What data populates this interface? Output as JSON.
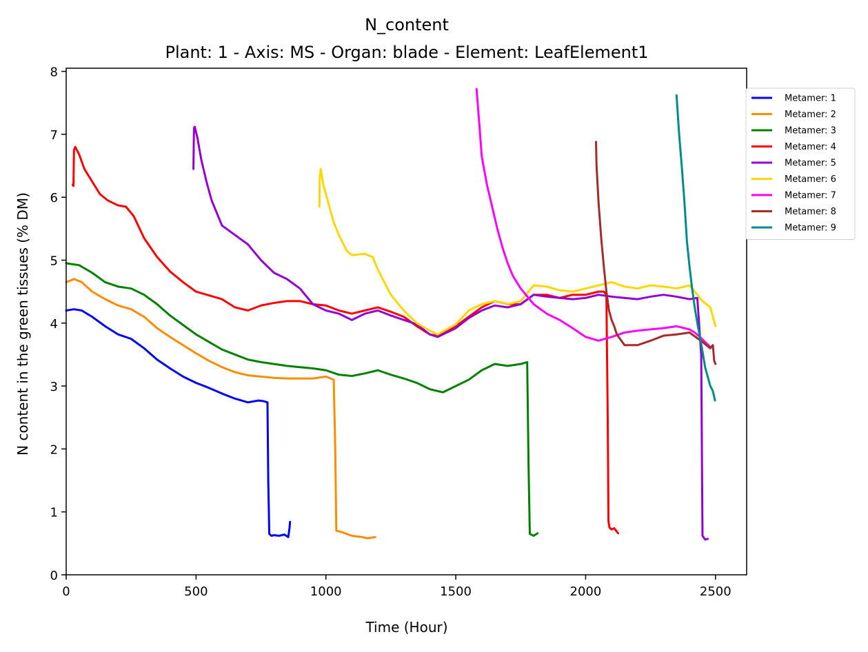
{
  "chart_data": {
    "type": "line",
    "title": "N_content",
    "subtitle": "Plant: 1 - Axis: MS - Organ: blade - Element: LeafElement1",
    "xlabel": "Time (Hour)",
    "ylabel": "N content in the green tissues (% DM)",
    "xlim": [
      0,
      2620
    ],
    "ylim": [
      0,
      8.05
    ],
    "xticks": [
      0,
      500,
      1000,
      1500,
      2000,
      2500
    ],
    "yticks": [
      0,
      1,
      2,
      3,
      4,
      5,
      6,
      7,
      8
    ],
    "xtick_labels": [
      "0",
      "500",
      "1000",
      "1500",
      "2000",
      "2500"
    ],
    "ytick_labels": [
      "0",
      "1",
      "2",
      "3",
      "4",
      "5",
      "6",
      "7",
      "8"
    ],
    "grid": false,
    "legend_position": "outside right, top",
    "series": [
      {
        "name": "Metamer: 1",
        "color": "#0000ff",
        "x": [
          0,
          30,
          60,
          100,
          150,
          200,
          250,
          300,
          350,
          400,
          450,
          500,
          550,
          600,
          650,
          700,
          740,
          760,
          775,
          778,
          782,
          790,
          800,
          820,
          840,
          855,
          860,
          862
        ],
        "y": [
          4.2,
          4.22,
          4.2,
          4.1,
          3.95,
          3.82,
          3.75,
          3.6,
          3.42,
          3.28,
          3.15,
          3.05,
          2.97,
          2.88,
          2.8,
          2.74,
          2.77,
          2.76,
          2.74,
          1.5,
          0.65,
          0.62,
          0.63,
          0.62,
          0.64,
          0.6,
          0.75,
          0.84
        ]
      },
      {
        "name": "Metamer: 2",
        "color": "#ff8c00",
        "x": [
          0,
          30,
          60,
          100,
          150,
          200,
          250,
          300,
          350,
          400,
          450,
          500,
          550,
          600,
          650,
          700,
          750,
          800,
          850,
          900,
          950,
          1000,
          1030,
          1036,
          1040,
          1060,
          1080,
          1100,
          1140,
          1160,
          1190
        ],
        "y": [
          4.65,
          4.7,
          4.65,
          4.5,
          4.38,
          4.28,
          4.22,
          4.1,
          3.92,
          3.78,
          3.65,
          3.52,
          3.4,
          3.3,
          3.22,
          3.17,
          3.15,
          3.13,
          3.12,
          3.12,
          3.12,
          3.15,
          3.1,
          2.0,
          0.7,
          0.68,
          0.65,
          0.62,
          0.6,
          0.58,
          0.6
        ]
      },
      {
        "name": "Metamer: 3",
        "color": "#008000",
        "x": [
          0,
          50,
          100,
          150,
          200,
          250,
          300,
          350,
          400,
          450,
          500,
          550,
          600,
          650,
          700,
          750,
          800,
          850,
          900,
          950,
          1000,
          1050,
          1100,
          1150,
          1200,
          1250,
          1300,
          1350,
          1400,
          1450,
          1500,
          1550,
          1600,
          1650,
          1700,
          1750,
          1775,
          1780,
          1785,
          1800,
          1815
        ],
        "y": [
          4.95,
          4.92,
          4.8,
          4.65,
          4.58,
          4.55,
          4.45,
          4.3,
          4.12,
          3.97,
          3.82,
          3.7,
          3.58,
          3.5,
          3.42,
          3.38,
          3.35,
          3.32,
          3.3,
          3.28,
          3.25,
          3.18,
          3.16,
          3.2,
          3.25,
          3.18,
          3.12,
          3.05,
          2.95,
          2.9,
          3.0,
          3.1,
          3.25,
          3.35,
          3.32,
          3.35,
          3.38,
          1.8,
          0.65,
          0.62,
          0.66
        ]
      },
      {
        "name": "Metamer: 4",
        "color": "#ff0000",
        "x": [
          25,
          28,
          30,
          35,
          50,
          70,
          100,
          130,
          160,
          200,
          230,
          260,
          300,
          350,
          400,
          450,
          500,
          550,
          600,
          650,
          700,
          750,
          800,
          850,
          900,
          950,
          1000,
          1050,
          1100,
          1150,
          1200,
          1250,
          1300,
          1350,
          1400,
          1430,
          1500,
          1550,
          1600,
          1650,
          1700,
          1750,
          1800,
          1850,
          1900,
          1950,
          2000,
          2050,
          2070,
          2080,
          2085,
          2088,
          2092,
          2100,
          2110,
          2125
        ],
        "y": [
          6.2,
          6.18,
          6.75,
          6.8,
          6.68,
          6.45,
          6.25,
          6.05,
          5.95,
          5.87,
          5.85,
          5.7,
          5.35,
          5.05,
          4.82,
          4.65,
          4.5,
          4.44,
          4.38,
          4.25,
          4.2,
          4.28,
          4.32,
          4.35,
          4.35,
          4.3,
          4.28,
          4.2,
          4.15,
          4.2,
          4.25,
          4.18,
          4.1,
          3.95,
          3.82,
          3.8,
          3.95,
          4.1,
          4.25,
          4.35,
          4.3,
          4.3,
          4.45,
          4.45,
          4.4,
          4.45,
          4.45,
          4.5,
          4.5,
          4.45,
          2.5,
          0.85,
          0.75,
          0.72,
          0.74,
          0.66
        ]
      },
      {
        "name": "Metamer: 5",
        "color": "#9400d3",
        "x": [
          490,
          492,
          495,
          505,
          520,
          540,
          560,
          580,
          600,
          650,
          700,
          750,
          800,
          850,
          900,
          950,
          1000,
          1050,
          1100,
          1150,
          1200,
          1250,
          1300,
          1350,
          1400,
          1430,
          1500,
          1550,
          1600,
          1650,
          1700,
          1750,
          1800,
          1850,
          1900,
          1950,
          2000,
          2050,
          2100,
          2150,
          2200,
          2250,
          2300,
          2350,
          2400,
          2430,
          2445,
          2450,
          2460,
          2470
        ],
        "y": [
          6.45,
          7.1,
          7.12,
          6.95,
          6.6,
          6.25,
          5.95,
          5.75,
          5.55,
          5.4,
          5.25,
          5.0,
          4.8,
          4.7,
          4.55,
          4.3,
          4.2,
          4.15,
          4.05,
          4.15,
          4.2,
          4.12,
          4.05,
          3.98,
          3.82,
          3.78,
          3.92,
          4.08,
          4.2,
          4.28,
          4.25,
          4.3,
          4.45,
          4.42,
          4.4,
          4.38,
          4.4,
          4.45,
          4.42,
          4.4,
          4.38,
          4.42,
          4.45,
          4.42,
          4.38,
          4.4,
          3.5,
          0.62,
          0.56,
          0.57
        ]
      },
      {
        "name": "Metamer: 6",
        "color": "#ffd700",
        "x": [
          975,
          976,
          980,
          990,
          1010,
          1030,
          1050,
          1080,
          1100,
          1150,
          1180,
          1200,
          1250,
          1300,
          1350,
          1400,
          1430,
          1500,
          1550,
          1600,
          1650,
          1700,
          1750,
          1800,
          1850,
          1900,
          1950,
          2000,
          2050,
          2100,
          2150,
          2200,
          2250,
          2300,
          2350,
          2400,
          2430,
          2450,
          2480,
          2500
        ],
        "y": [
          5.85,
          6.3,
          6.45,
          6.2,
          5.9,
          5.6,
          5.4,
          5.15,
          5.08,
          5.1,
          5.05,
          4.85,
          4.45,
          4.2,
          4.0,
          3.88,
          3.82,
          3.98,
          4.2,
          4.3,
          4.35,
          4.3,
          4.35,
          4.6,
          4.58,
          4.52,
          4.5,
          4.55,
          4.6,
          4.65,
          4.58,
          4.55,
          4.6,
          4.58,
          4.55,
          4.6,
          4.45,
          4.35,
          4.25,
          3.95
        ]
      },
      {
        "name": "Metamer: 7",
        "color": "#ff00ff",
        "x": [
          1580,
          1590,
          1600,
          1620,
          1640,
          1660,
          1680,
          1700,
          1720,
          1750,
          1800,
          1850,
          1900,
          1950,
          2000,
          2050,
          2100,
          2150,
          2200,
          2250,
          2300,
          2350,
          2400,
          2420,
          2440,
          2460,
          2480
        ],
        "y": [
          7.72,
          7.2,
          6.65,
          6.2,
          5.85,
          5.5,
          5.2,
          4.95,
          4.75,
          4.55,
          4.3,
          4.15,
          4.05,
          3.92,
          3.78,
          3.72,
          3.78,
          3.85,
          3.88,
          3.9,
          3.92,
          3.95,
          3.9,
          3.85,
          3.78,
          3.7,
          3.62
        ]
      },
      {
        "name": "Metamer: 8",
        "color": "#a52a2a",
        "x": [
          2040,
          2042,
          2050,
          2060,
          2070,
          2080,
          2090,
          2100,
          2110,
          2120,
          2150,
          2200,
          2250,
          2300,
          2350,
          2400,
          2450,
          2480,
          2490,
          2495,
          2500
        ],
        "y": [
          6.88,
          6.5,
          5.9,
          5.35,
          4.9,
          4.5,
          4.2,
          4.05,
          3.95,
          3.82,
          3.65,
          3.65,
          3.72,
          3.8,
          3.82,
          3.85,
          3.7,
          3.6,
          3.65,
          3.4,
          3.35
        ]
      },
      {
        "name": "Metamer: 9",
        "color": "#008b8b",
        "x": [
          2350,
          2352,
          2360,
          2370,
          2380,
          2390,
          2400,
          2410,
          2420,
          2430,
          2440,
          2450,
          2460,
          2470,
          2480,
          2490,
          2498
        ],
        "y": [
          7.62,
          7.5,
          7.0,
          6.5,
          5.95,
          5.3,
          4.9,
          4.55,
          4.25,
          4.0,
          3.78,
          3.55,
          3.3,
          3.15,
          3.0,
          2.92,
          2.77
        ]
      }
    ]
  }
}
